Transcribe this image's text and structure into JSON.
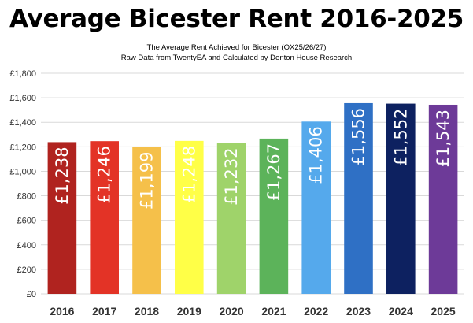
{
  "chart_data": {
    "type": "bar",
    "title": "Average Bicester Rent 2016-2025",
    "subtitle_lines": [
      "The Average Rent Achieved for Bicester (OX25/26/27)",
      "Raw Data from TwentyEA and Calculated by Denton House Research"
    ],
    "xlabel": "",
    "ylabel": "",
    "ylim": [
      0,
      1800
    ],
    "y_ticks": [
      0,
      200,
      400,
      600,
      800,
      1000,
      1200,
      1400,
      1600,
      1800
    ],
    "y_tick_labels": [
      "£0",
      "£200",
      "£400",
      "£600",
      "£800",
      "£1,000",
      "£1,200",
      "£1,400",
      "£1,600",
      "£1,800"
    ],
    "grid": true,
    "categories": [
      "2016",
      "2017",
      "2018",
      "2019",
      "2020",
      "2021",
      "2022",
      "2023",
      "2024",
      "2025"
    ],
    "values": [
      1238,
      1246,
      1199,
      1248,
      1232,
      1267,
      1406,
      1556,
      1552,
      1543
    ],
    "data_labels": [
      "£1,238",
      "£1,246",
      "£1,199",
      "£1,248",
      "£1,232",
      "£1,267",
      "£1,406",
      "£1,556",
      "£1,552",
      "£1,543"
    ],
    "bar_colors": [
      "#b0231f",
      "#e33326",
      "#f5c04a",
      "#ffff47",
      "#9fd36a",
      "#5cb35a",
      "#55a9ec",
      "#2f70c5",
      "#0d2160",
      "#6d3a98"
    ],
    "legend": "none"
  }
}
